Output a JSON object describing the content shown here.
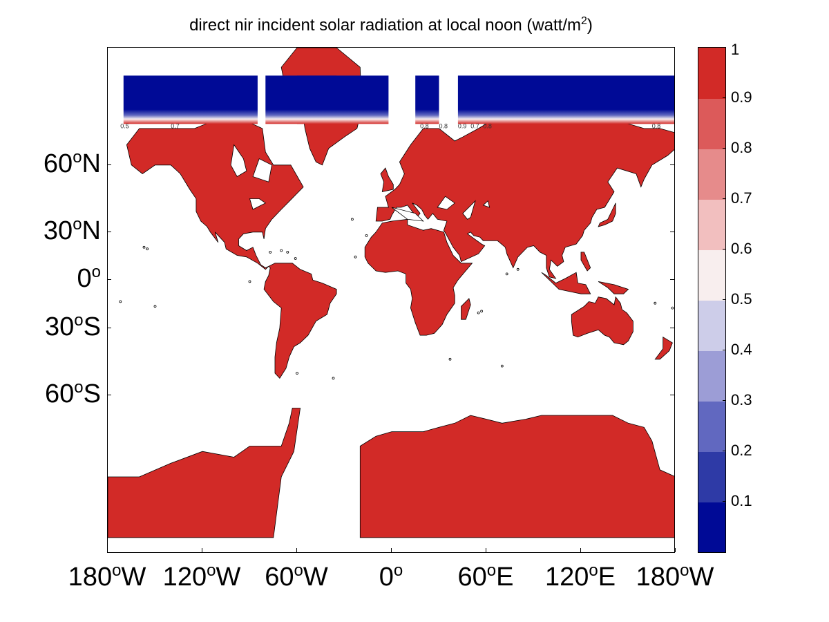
{
  "title_main": "direct nir incident solar radiation at local noon (watt/m",
  "title_sup": "2",
  "title_end": ")",
  "y_ticks": [
    {
      "deg": "60",
      "sup": "o",
      "hemi": "N",
      "lat": 60
    },
    {
      "deg": "30",
      "sup": "o",
      "hemi": "N",
      "lat": 30
    },
    {
      "deg": "0",
      "sup": "o",
      "hemi": "",
      "lat": 0
    },
    {
      "deg": "30",
      "sup": "o",
      "hemi": "S",
      "lat": -30
    },
    {
      "deg": "60",
      "sup": "o",
      "hemi": "S",
      "lat": -60
    }
  ],
  "x_ticks": [
    {
      "deg": "180",
      "sup": "o",
      "hemi": "W",
      "lon": -180
    },
    {
      "deg": "120",
      "sup": "o",
      "hemi": "W",
      "lon": -120
    },
    {
      "deg": "60",
      "sup": "o",
      "hemi": "W",
      "lon": -60
    },
    {
      "deg": "0",
      "sup": "o",
      "hemi": "",
      "lon": 0
    },
    {
      "deg": "60",
      "sup": "o",
      "hemi": "E",
      "lon": 60
    },
    {
      "deg": "120",
      "sup": "o",
      "hemi": "E",
      "lon": 120
    },
    {
      "deg": "180",
      "sup": "o",
      "hemi": "W",
      "lon": 180
    }
  ],
  "colorbar": {
    "labels": [
      "1",
      "0.9",
      "0.8",
      "0.7",
      "0.6",
      "0.5",
      "0.4",
      "0.3",
      "0.2",
      "0.1"
    ],
    "colors": [
      "#000a96",
      "#2e3aa6",
      "#6168c0",
      "#9c9dd6",
      "#cdcde9",
      "#f8eeee",
      "#f2bfbf",
      "#e68b8b",
      "#dc5a5a",
      "#d22a27"
    ]
  },
  "map": {
    "land_color": "#d22a27",
    "polar_color": "#000a96",
    "coast_color": "#000000",
    "lat_range": [
      -85,
      82
    ],
    "lon_range": [
      -180,
      180
    ],
    "contour_labels": [
      "0.5",
      "0.7",
      "0.8",
      "0.8",
      "0.9",
      "0.7",
      "0.8",
      "0.8"
    ]
  }
}
